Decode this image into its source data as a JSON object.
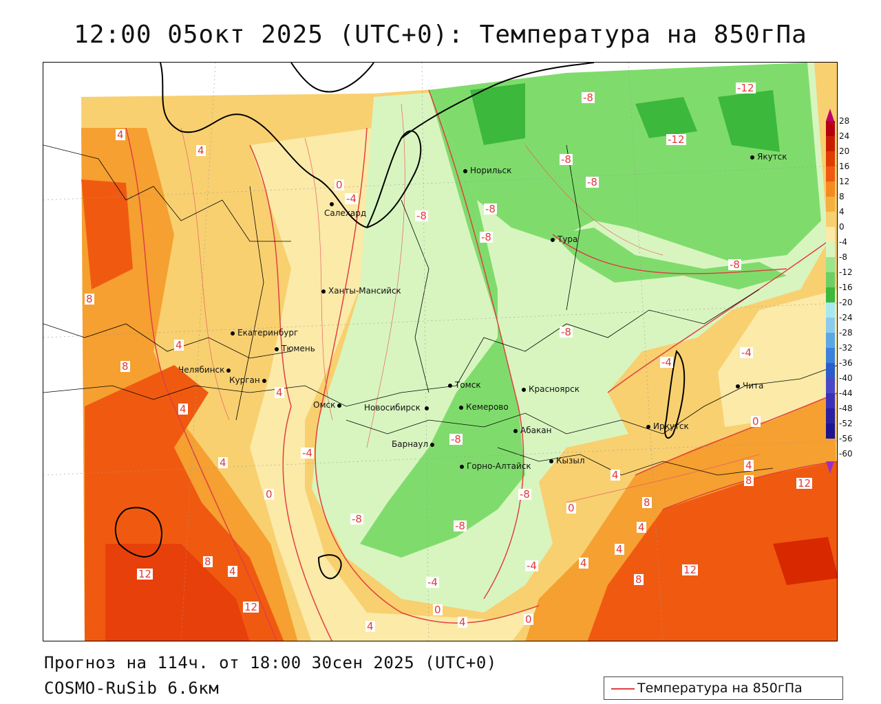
{
  "title": "12:00 05окт 2025 (UTC+0): Температура на 850гПа",
  "footer": {
    "forecast": "Прогноз на 114ч. от 18:00 30сен 2025 (UTC+0)",
    "model": "COSMO-RuSib 6.6км"
  },
  "legend": {
    "label": "Температура на 850гПа",
    "color": "#e04040"
  },
  "colorbar": {
    "labels": [
      "28",
      "24",
      "20",
      "16",
      "12",
      "8",
      "4",
      "0",
      "-4",
      "-8",
      "-12",
      "-16",
      "-20",
      "-24",
      "-28",
      "-32",
      "-36",
      "-40",
      "-44",
      "-48",
      "-52",
      "-56",
      "-60"
    ],
    "colors": [
      "#c0006a",
      "#b40010",
      "#c81e00",
      "#e03c00",
      "#f05a10",
      "#f58a20",
      "#f5b040",
      "#f8d070",
      "#fbeaa8",
      "#d8f5c0",
      "#9be58c",
      "#6ed064",
      "#3cb83c",
      "#a8e8f0",
      "#8ccbec",
      "#5aa8e6",
      "#3a82dc",
      "#2a5ccc",
      "#4a48c8",
      "#3c30b8",
      "#2a20a0",
      "#1c1490",
      "#9a30c8"
    ]
  },
  "cities": [
    {
      "name": "Норильск"
    },
    {
      "name": "Якутск"
    },
    {
      "name": "Салехард"
    },
    {
      "name": "Тура"
    },
    {
      "name": "Ханты-Мансийск"
    },
    {
      "name": "Екатеринбург"
    },
    {
      "name": "Тюмень"
    },
    {
      "name": "Челябинск"
    },
    {
      "name": "Курган"
    },
    {
      "name": "Омск"
    },
    {
      "name": "Томск"
    },
    {
      "name": "Красноярск"
    },
    {
      "name": "Новосибирск"
    },
    {
      "name": "Кемерово"
    },
    {
      "name": "Барнаул"
    },
    {
      "name": "Абакан"
    },
    {
      "name": "Иркутск"
    },
    {
      "name": "Чита"
    },
    {
      "name": "Кызыл"
    },
    {
      "name": "Горно-Алтайск"
    }
  ],
  "contour_labels": [
    "4",
    "4",
    "0",
    "-4",
    "-8",
    "-8",
    "-8",
    "-8",
    "-8",
    "-12",
    "-12",
    "-8",
    "-8",
    "-8",
    "-8",
    "8",
    "4",
    "8",
    "4",
    "-4",
    "-4",
    "4",
    "4",
    "0",
    "-4",
    "0",
    "8",
    "4",
    "-8",
    "-8",
    "-8",
    "-8",
    "0",
    "4",
    "8",
    "12",
    "8",
    "4",
    "4",
    "4",
    "8",
    "12",
    "12",
    "8",
    "4",
    "12",
    "4",
    "0",
    "4",
    "0",
    "-4",
    "-4"
  ],
  "map_colors": {
    "deep_warm": "#f05a10",
    "warm": "#f5a030",
    "mild": "#f8d070",
    "pale": "#fbeaa8",
    "cool": "#d8f5c0",
    "green": "#7fdc6c",
    "dark_green": "#3cb83c",
    "hot": "#d82800",
    "contour": "#e04040"
  }
}
